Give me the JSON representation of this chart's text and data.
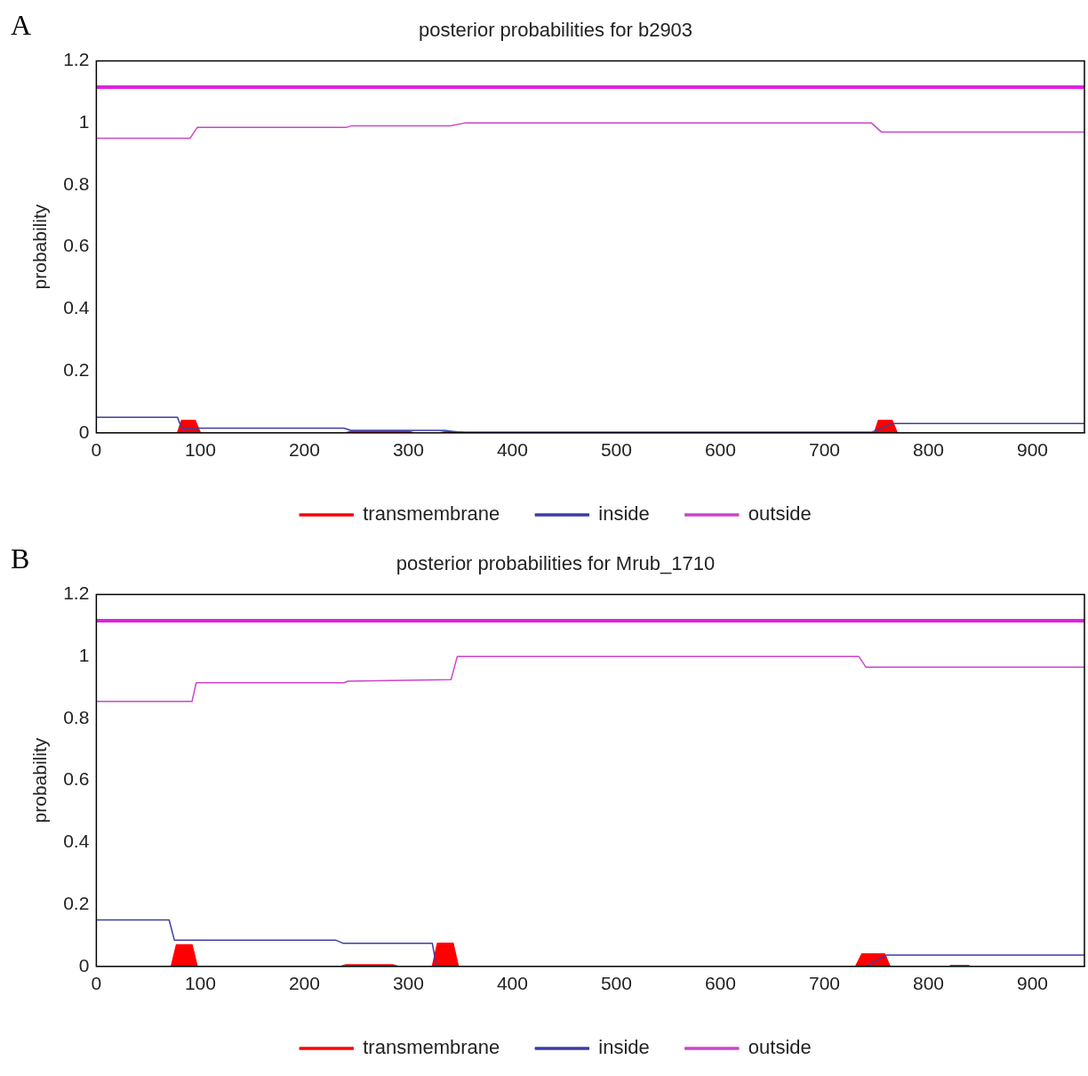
{
  "chart_data": [
    {
      "type": "line",
      "title": "posterior probabilities for b2903",
      "ylabel": "probability",
      "annotations": [
        "A"
      ],
      "legend": "bottom",
      "grid": false,
      "xlim": [
        0,
        950
      ],
      "xticks": [
        0,
        100,
        200,
        300,
        400,
        500,
        600,
        700,
        800,
        900
      ],
      "ylim": [
        0,
        1.2
      ],
      "yticks": [
        0,
        0.2,
        0.4,
        0.6,
        0.8,
        1,
        1.2
      ],
      "ref_lines": [
        {
          "axis": "y",
          "value": 1.115,
          "label": null,
          "color": "#e020e0"
        }
      ],
      "series": [
        {
          "name": "transmembrane",
          "type": "area",
          "color": "#ff0000",
          "x": [
            0,
            78,
            82,
            95,
            100,
            240,
            245,
            300,
            305,
            330,
            335,
            350,
            355,
            748,
            752,
            765,
            770,
            950
          ],
          "values": [
            0,
            0,
            0.04,
            0.04,
            0,
            0,
            0.005,
            0.005,
            0,
            0,
            0.003,
            0.003,
            0,
            0,
            0.04,
            0.04,
            0,
            0
          ]
        },
        {
          "name": "inside",
          "type": "line",
          "color": "#3c3ca8",
          "x": [
            0,
            78,
            82,
            238,
            245,
            335,
            350,
            745,
            765,
            950
          ],
          "values": [
            0.05,
            0.05,
            0.015,
            0.015,
            0.008,
            0.008,
            0.002,
            0.002,
            0.03,
            0.03
          ]
        },
        {
          "name": "outside",
          "type": "line",
          "color": "#cc44cc",
          "x": [
            0,
            90,
            97,
            240,
            245,
            340,
            355,
            745,
            755,
            950
          ],
          "values": [
            0.95,
            0.95,
            0.985,
            0.985,
            0.99,
            0.99,
            1,
            1,
            0.97,
            0.97
          ]
        }
      ]
    },
    {
      "type": "line",
      "title": "posterior probabilities for Mrub_1710",
      "ylabel": "probability",
      "annotations": [
        "B"
      ],
      "legend": "bottom",
      "grid": false,
      "xlim": [
        0,
        950
      ],
      "xticks": [
        0,
        100,
        200,
        300,
        400,
        500,
        600,
        700,
        800,
        900
      ],
      "ylim": [
        0,
        1.2
      ],
      "yticks": [
        0,
        0.2,
        0.4,
        0.6,
        0.8,
        1,
        1.2
      ],
      "ref_lines": [
        {
          "axis": "y",
          "value": 1.115,
          "label": null,
          "color": "#e020e0"
        }
      ],
      "series": [
        {
          "name": "transmembrane",
          "type": "area",
          "color": "#ff0000",
          "x": [
            0,
            72,
            77,
            92,
            97,
            235,
            240,
            285,
            290,
            323,
            328,
            343,
            348,
            730,
            736,
            758,
            763,
            820,
            822,
            838,
            840,
            950
          ],
          "values": [
            0,
            0,
            0.07,
            0.07,
            0,
            0,
            0.005,
            0.005,
            0,
            0,
            0.075,
            0.075,
            0,
            0,
            0.04,
            0.04,
            0,
            0,
            0.003,
            0.003,
            0,
            0
          ]
        },
        {
          "name": "inside",
          "type": "line",
          "color": "#3c3ca8",
          "x": [
            0,
            70,
            75,
            230,
            237,
            323,
            327,
            740,
            760,
            950
          ],
          "values": [
            0.15,
            0.15,
            0.085,
            0.085,
            0.075,
            0.075,
            0,
            0,
            0.037,
            0.037
          ]
        },
        {
          "name": "outside",
          "type": "line",
          "color": "#cc44cc",
          "x": [
            0,
            92,
            96,
            238,
            242,
            341,
            347,
            733,
            740,
            950
          ],
          "values": [
            0.855,
            0.855,
            0.915,
            0.915,
            0.92,
            0.925,
            1,
            1,
            0.965,
            0.965
          ]
        }
      ]
    }
  ]
}
